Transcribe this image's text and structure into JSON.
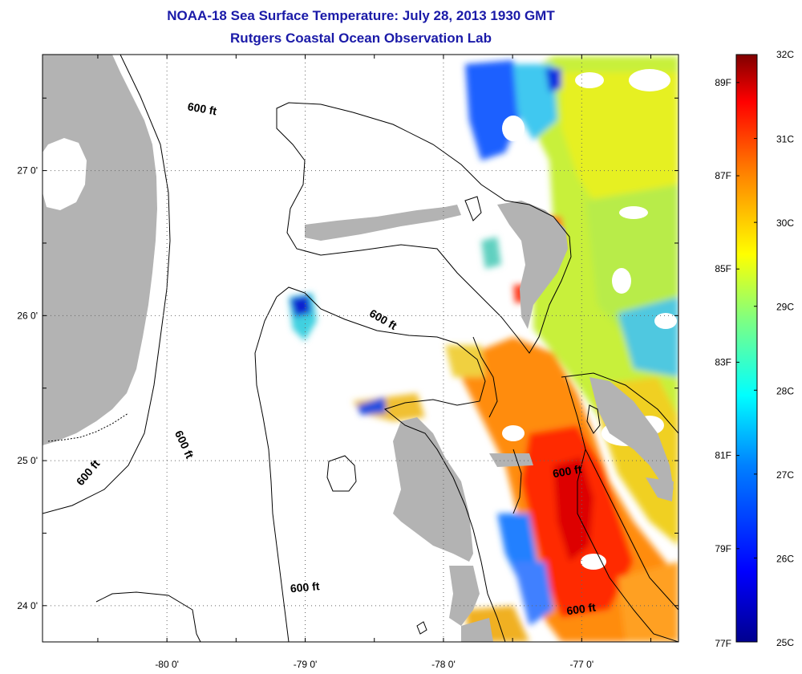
{
  "title_line1": "NOAA-18 Sea Surface Temperature:  July 28, 2013 1930 GMT",
  "title_line2": "Rutgers Coastal Ocean Observation Lab",
  "map": {
    "lon_range": [
      -80.9,
      -76.3
    ],
    "lat_range": [
      23.75,
      27.8
    ],
    "lon_ticks": [
      {
        "value": -80,
        "label": "-80 0'"
      },
      {
        "value": -79,
        "label": "-79 0'"
      },
      {
        "value": -78,
        "label": "-78 0'"
      },
      {
        "value": -77,
        "label": "-77 0'"
      }
    ],
    "lat_ticks": [
      {
        "value": 27,
        "label": "27 0'"
      },
      {
        "value": 26,
        "label": "26 0'"
      },
      {
        "value": 25,
        "label": "25 0'"
      },
      {
        "value": 24,
        "label": "24 0'"
      }
    ],
    "grid": "dotted",
    "land_color": "#b3b3b3",
    "contour_label": "600 ft",
    "contour_labels": [
      {
        "text": "600 ft",
        "lon": -79.75,
        "lat": 27.4
      },
      {
        "text": "600 ft",
        "lon": -78.45,
        "lat": 25.95
      },
      {
        "text": "600 ft",
        "lon": -79.9,
        "lat": 25.1
      },
      {
        "text": "600 ft",
        "lon": -80.55,
        "lat": 24.9
      },
      {
        "text": "600 ft",
        "lon": -77.1,
        "lat": 24.9
      },
      {
        "text": "600 ft",
        "lon": -79.0,
        "lat": 24.1
      },
      {
        "text": "600 ft",
        "lon": -77.0,
        "lat": 23.95
      }
    ]
  },
  "colorbar": {
    "celsius_min": 25,
    "celsius_max": 32,
    "celsius_labels": [
      "32C",
      "31C",
      "30C",
      "29C",
      "28C",
      "27C",
      "26C",
      "25C"
    ],
    "fahrenheit_labels": [
      "89F",
      "87F",
      "85F",
      "83F",
      "81F",
      "79F",
      "77F"
    ],
    "fahrenheit_values": [
      89,
      87,
      85,
      83,
      81,
      79,
      77
    ],
    "colormap": [
      "#00008f",
      "#0000ff",
      "#0080ff",
      "#00ffff",
      "#80ff80",
      "#ffff00",
      "#ff8000",
      "#ff0000",
      "#800000"
    ]
  }
}
